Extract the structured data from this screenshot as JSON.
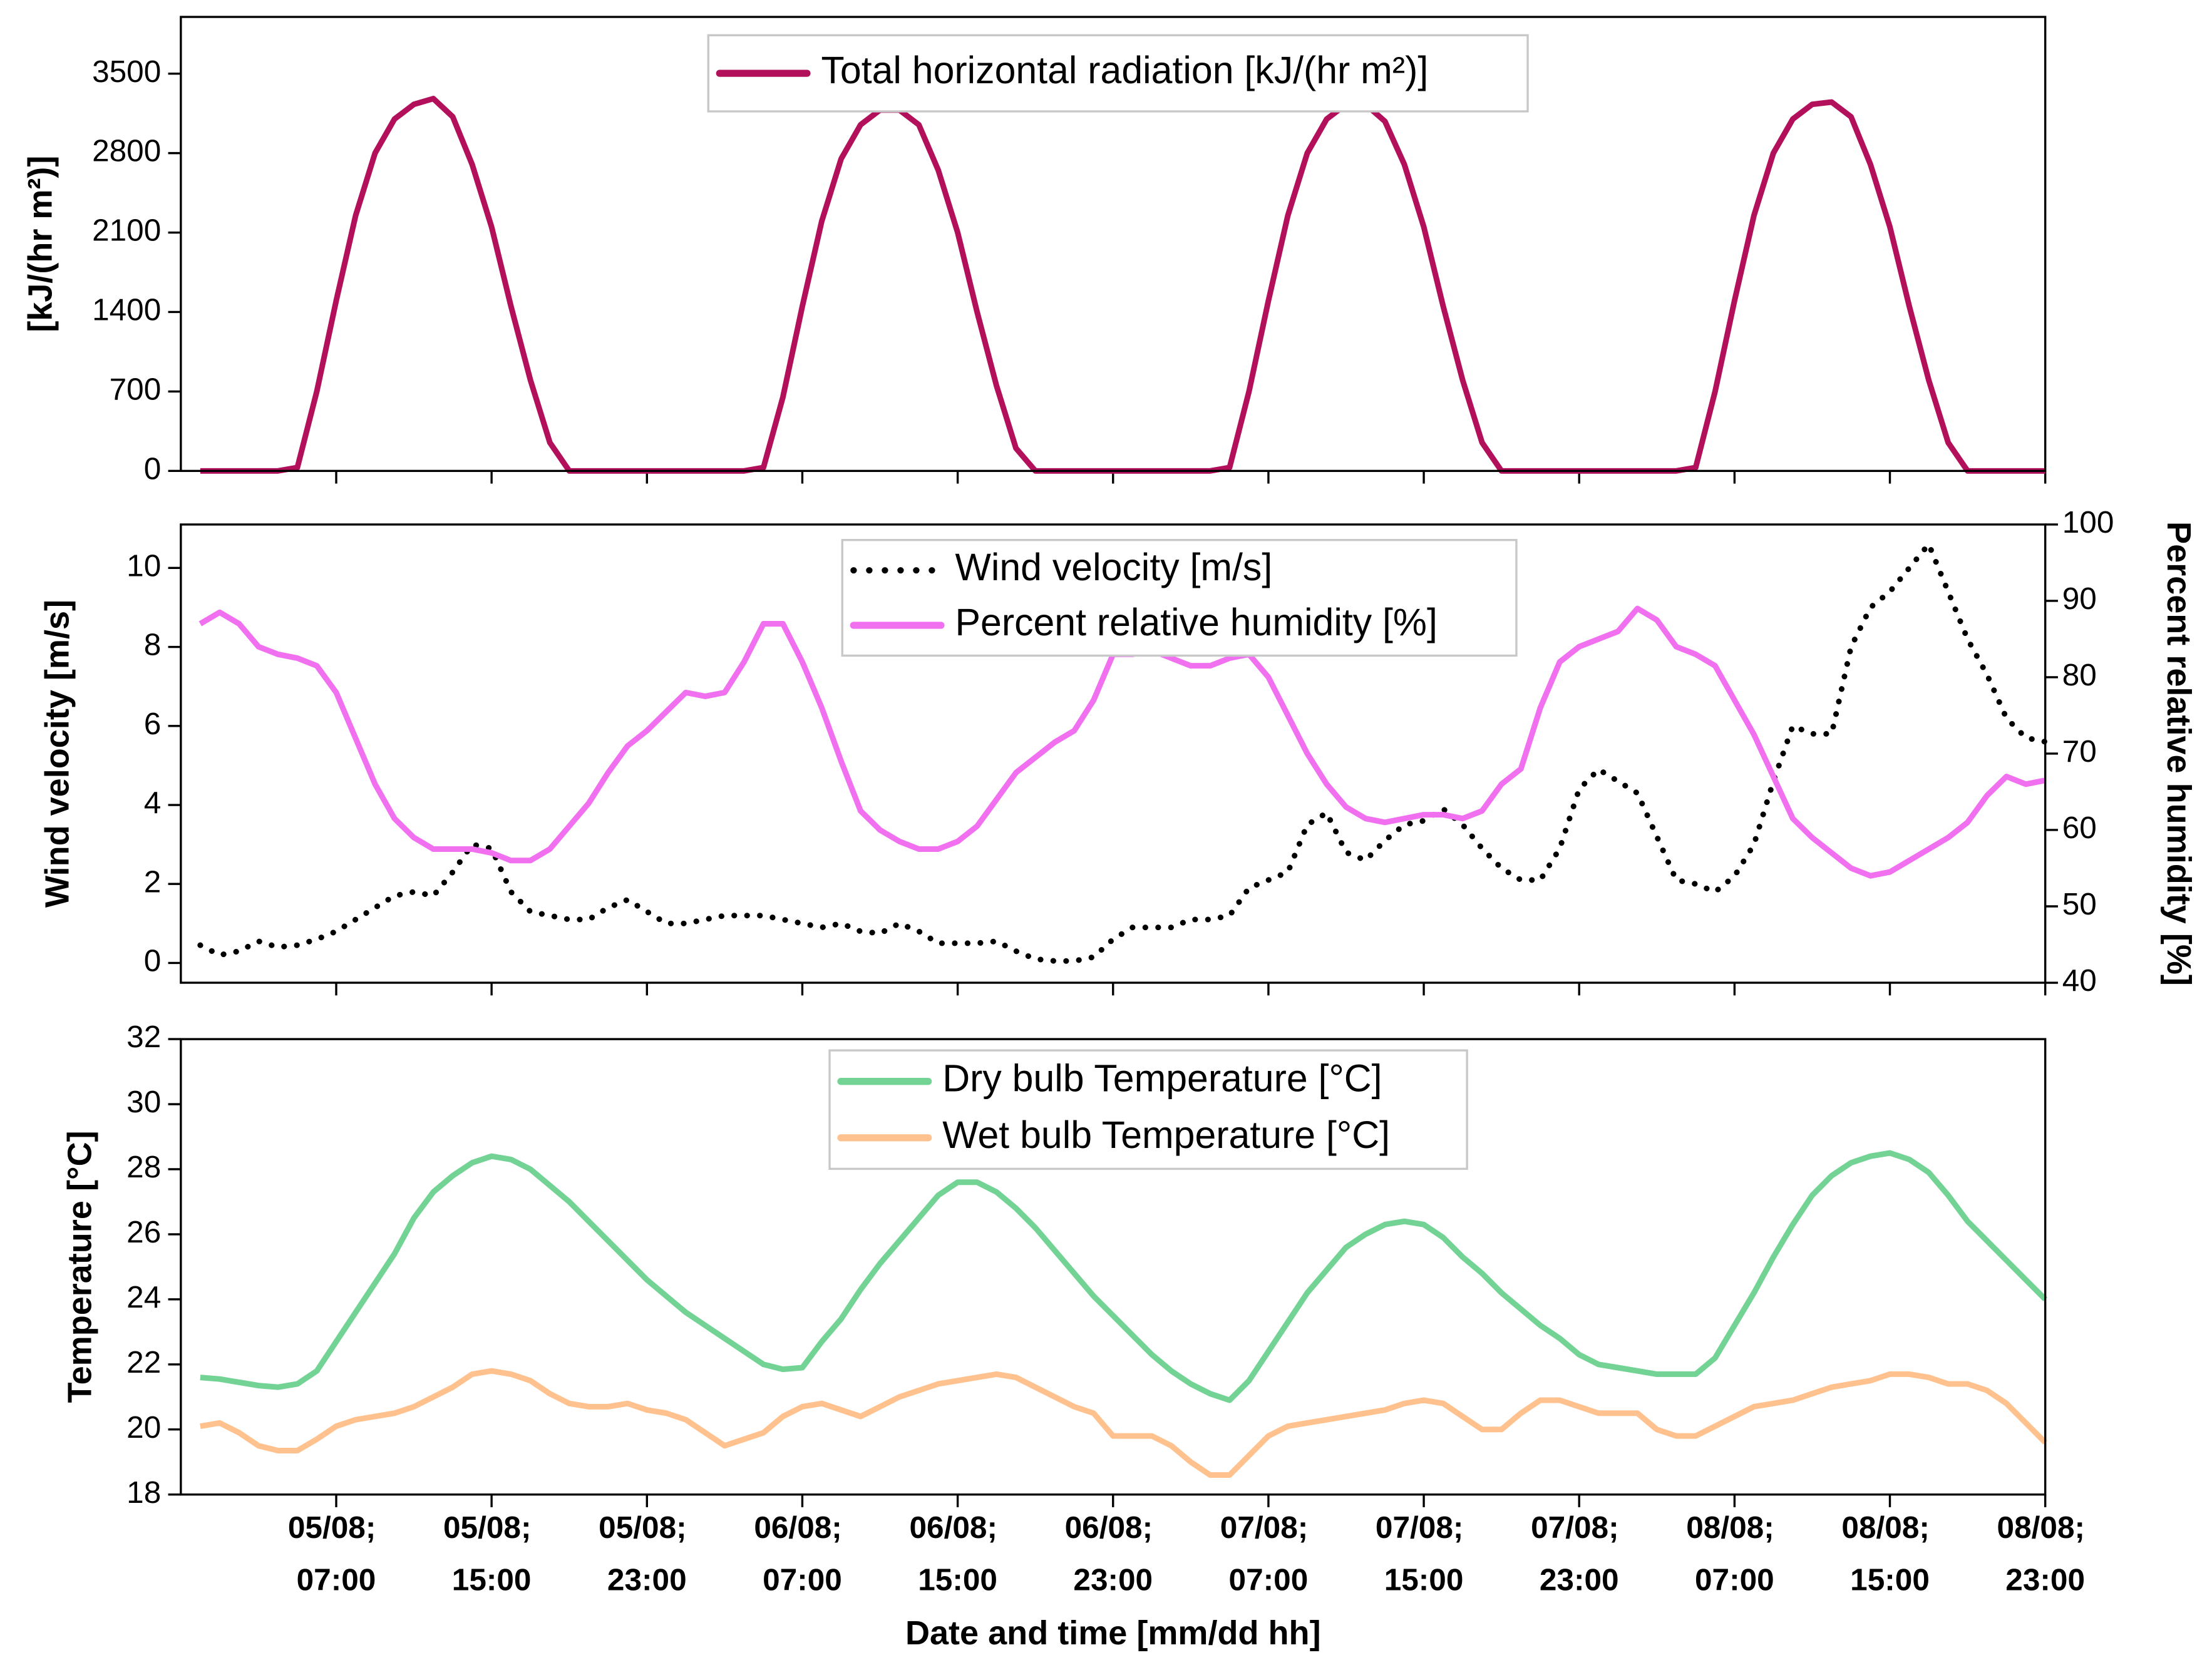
{
  "chart_data": [
    {
      "type": "line",
      "ylabel": "[kJ/(hr m²)]",
      "xlim": [
        -1,
        95
      ],
      "xticks": [
        7,
        15,
        23,
        31,
        39,
        47,
        55,
        63,
        71,
        79,
        87,
        95
      ],
      "ylim": [
        0,
        4000
      ],
      "yticks": [
        0,
        700,
        1400,
        2100,
        2800,
        3500
      ],
      "x": [
        0,
        1,
        2,
        3,
        4,
        5,
        6,
        7,
        8,
        9,
        10,
        11,
        12,
        13,
        14,
        15,
        16,
        17,
        18,
        19,
        20,
        21,
        22,
        23,
        24,
        25,
        26,
        27,
        28,
        29,
        30,
        31,
        32,
        33,
        34,
        35,
        36,
        37,
        38,
        39,
        40,
        41,
        42,
        43,
        44,
        45,
        46,
        47,
        48,
        49,
        50,
        51,
        52,
        53,
        54,
        55,
        56,
        57,
        58,
        59,
        60,
        61,
        62,
        63,
        64,
        65,
        66,
        67,
        68,
        69,
        70,
        71,
        72,
        73,
        74,
        75,
        76,
        77,
        78,
        79,
        80,
        81,
        82,
        83,
        84,
        85,
        86,
        87,
        88,
        89,
        90,
        91,
        92,
        93,
        94,
        95
      ],
      "series": [
        {
          "name": "Total horizontal radiation [kJ/(hr m²)]",
          "color": "#b3105c",
          "linestyle": "solid",
          "values": [
            0,
            0,
            0,
            0,
            0,
            30,
            700,
            1500,
            2250,
            2800,
            3100,
            3230,
            3280,
            3120,
            2700,
            2150,
            1450,
            800,
            250,
            0,
            0,
            0,
            0,
            0,
            0,
            0,
            0,
            0,
            0,
            30,
            650,
            1450,
            2200,
            2750,
            3050,
            3180,
            3180,
            3050,
            2650,
            2100,
            1400,
            750,
            200,
            0,
            0,
            0,
            0,
            0,
            0,
            0,
            0,
            0,
            0,
            30,
            700,
            1500,
            2250,
            2800,
            3100,
            3230,
            3230,
            3080,
            2700,
            2150,
            1450,
            800,
            250,
            0,
            0,
            0,
            0,
            0,
            0,
            0,
            0,
            0,
            0,
            30,
            700,
            1500,
            2250,
            2800,
            3100,
            3230,
            3250,
            3120,
            2700,
            2150,
            1450,
            800,
            250,
            0,
            0,
            0,
            0,
            0
          ]
        }
      ]
    },
    {
      "type": "line",
      "ylabel": "Wind velocity [m/s]",
      "y2label": "Percent relative humidity [%]",
      "xlim": [
        -1,
        95
      ],
      "xticks": [
        7,
        15,
        23,
        31,
        39,
        47,
        55,
        63,
        71,
        79,
        87,
        95
      ],
      "ylim": [
        -0.5,
        11.1
      ],
      "yticks": [
        0,
        2,
        4,
        6,
        8,
        10
      ],
      "y2lim": [
        40,
        100
      ],
      "y2ticks": [
        40,
        50,
        60,
        70,
        80,
        90,
        100
      ],
      "x": [
        0,
        1,
        2,
        3,
        4,
        5,
        6,
        7,
        8,
        9,
        10,
        11,
        12,
        13,
        14,
        15,
        16,
        17,
        18,
        19,
        20,
        21,
        22,
        23,
        24,
        25,
        26,
        27,
        28,
        29,
        30,
        31,
        32,
        33,
        34,
        35,
        36,
        37,
        38,
        39,
        40,
        41,
        42,
        43,
        44,
        45,
        46,
        47,
        48,
        49,
        50,
        51,
        52,
        53,
        54,
        55,
        56,
        57,
        58,
        59,
        60,
        61,
        62,
        63,
        64,
        65,
        66,
        67,
        68,
        69,
        70,
        71,
        72,
        73,
        74,
        75,
        76,
        77,
        78,
        79,
        80,
        81,
        82,
        83,
        84,
        85,
        86,
        87,
        88,
        89,
        90,
        91,
        92,
        93,
        94,
        95
      ],
      "series": [
        {
          "name": "Wind velocity [m/s]",
          "color": "#000000",
          "linestyle": "dotted",
          "values": [
            0.45,
            0.2,
            0.3,
            0.55,
            0.4,
            0.45,
            0.6,
            0.8,
            1.1,
            1.4,
            1.7,
            1.8,
            1.7,
            2.3,
            3.0,
            2.9,
            1.8,
            1.3,
            1.2,
            1.1,
            1.1,
            1.4,
            1.6,
            1.3,
            1.0,
            1.0,
            1.1,
            1.2,
            1.2,
            1.2,
            1.1,
            1.0,
            0.9,
            1.0,
            0.8,
            0.75,
            1.0,
            0.8,
            0.5,
            0.5,
            0.5,
            0.55,
            0.3,
            0.1,
            0.05,
            0.05,
            0.15,
            0.6,
            0.9,
            0.9,
            0.9,
            1.1,
            1.1,
            1.2,
            1.9,
            2.1,
            2.3,
            3.5,
            3.8,
            2.8,
            2.6,
            3.1,
            3.5,
            3.6,
            3.9,
            3.5,
            2.9,
            2.4,
            2.1,
            2.1,
            2.9,
            4.4,
            4.9,
            4.6,
            4.3,
            3.2,
            2.1,
            2.0,
            1.8,
            2.2,
            3.0,
            4.6,
            6.0,
            5.8,
            5.8,
            8.0,
            9.0,
            9.4,
            10.0,
            10.6,
            9.4,
            8.2,
            7.3,
            6.2,
            5.7,
            5.6
          ]
        },
        {
          "name": "Percent relative humidity [%]",
          "color": "#f070f0",
          "linestyle": "solid",
          "axis": "y2",
          "values": [
            87,
            88.5,
            87,
            84,
            83,
            82.5,
            81.5,
            78,
            72,
            66,
            61.5,
            59,
            57.5,
            57.5,
            57.5,
            57,
            56,
            56,
            57.5,
            60.5,
            63.5,
            67.5,
            71,
            73,
            75.5,
            78,
            77.5,
            78,
            82,
            87,
            87,
            82,
            76,
            69,
            62.5,
            60,
            58.5,
            57.5,
            57.5,
            58.5,
            60.5,
            64,
            67.5,
            69.5,
            71.5,
            73,
            77,
            83,
            83,
            83.5,
            82.5,
            81.5,
            81.5,
            82.5,
            83,
            80,
            75,
            70,
            66,
            63,
            61.5,
            61,
            61.5,
            62,
            62,
            61.5,
            62.5,
            66,
            68,
            76,
            82,
            84,
            85,
            86,
            89,
            87.5,
            84,
            83,
            81.5,
            77,
            72.5,
            67,
            61.5,
            59,
            57,
            55,
            54,
            54.5,
            56,
            57.5,
            59,
            61,
            64.5,
            67,
            66,
            66.5
          ]
        }
      ]
    },
    {
      "type": "line",
      "ylabel": "Temperature [°C]",
      "xlabel": "Date and time [mm/dd hh]",
      "xlim": [
        -1,
        95
      ],
      "xticks": [
        {
          "value": 7,
          "label": "05/08; 07:00"
        },
        {
          "value": 15,
          "label": "05/08; 15:00"
        },
        {
          "value": 23,
          "label": "05/08; 23:00"
        },
        {
          "value": 31,
          "label": "06/08; 07:00"
        },
        {
          "value": 39,
          "label": "06/08; 15:00"
        },
        {
          "value": 47,
          "label": "06/08; 23:00"
        },
        {
          "value": 55,
          "label": "07/08; 07:00"
        },
        {
          "value": 63,
          "label": "07/08; 15:00"
        },
        {
          "value": 71,
          "label": "07/08; 23:00"
        },
        {
          "value": 79,
          "label": "08/08; 07:00"
        },
        {
          "value": 87,
          "label": "08/08; 15:00"
        },
        {
          "value": 95,
          "label": "08/08; 23:00"
        }
      ],
      "ylim": [
        18,
        32
      ],
      "yticks": [
        18,
        20,
        22,
        24,
        26,
        28,
        30,
        32
      ],
      "x": [
        0,
        1,
        2,
        3,
        4,
        5,
        6,
        7,
        8,
        9,
        10,
        11,
        12,
        13,
        14,
        15,
        16,
        17,
        18,
        19,
        20,
        21,
        22,
        23,
        24,
        25,
        26,
        27,
        28,
        29,
        30,
        31,
        32,
        33,
        34,
        35,
        36,
        37,
        38,
        39,
        40,
        41,
        42,
        43,
        44,
        45,
        46,
        47,
        48,
        49,
        50,
        51,
        52,
        53,
        54,
        55,
        56,
        57,
        58,
        59,
        60,
        61,
        62,
        63,
        64,
        65,
        66,
        67,
        68,
        69,
        70,
        71,
        72,
        73,
        74,
        75,
        76,
        77,
        78,
        79,
        80,
        81,
        82,
        83,
        84,
        85,
        86,
        87,
        88,
        89,
        90,
        91,
        92,
        93,
        94,
        95
      ],
      "series": [
        {
          "name": "Dry bulb Temperature [°C]",
          "color": "#72d394",
          "linestyle": "solid",
          "values": [
            21.6,
            21.55,
            21.45,
            21.35,
            21.3,
            21.4,
            21.8,
            22.7,
            23.6,
            24.5,
            25.4,
            26.5,
            27.3,
            27.8,
            28.2,
            28.4,
            28.3,
            28.0,
            27.5,
            27.0,
            26.4,
            25.8,
            25.2,
            24.6,
            24.1,
            23.6,
            23.2,
            22.8,
            22.4,
            22.0,
            21.85,
            21.9,
            22.7,
            23.4,
            24.3,
            25.1,
            25.8,
            26.5,
            27.2,
            27.6,
            27.6,
            27.3,
            26.8,
            26.2,
            25.5,
            24.8,
            24.1,
            23.5,
            22.9,
            22.3,
            21.8,
            21.4,
            21.1,
            20.9,
            21.5,
            22.4,
            23.3,
            24.2,
            24.9,
            25.6,
            26.0,
            26.3,
            26.4,
            26.3,
            25.9,
            25.3,
            24.8,
            24.2,
            23.7,
            23.2,
            22.8,
            22.3,
            22.0,
            21.9,
            21.8,
            21.7,
            21.7,
            21.7,
            22.2,
            23.2,
            24.2,
            25.3,
            26.3,
            27.2,
            27.8,
            28.2,
            28.4,
            28.5,
            28.3,
            27.9,
            27.2,
            26.4,
            25.8,
            25.2,
            24.6,
            24.0
          ]
        },
        {
          "name": "Wet bulb Temperature [°C]",
          "color": "#ffc28e",
          "linestyle": "solid",
          "values": [
            20.1,
            20.2,
            19.9,
            19.5,
            19.35,
            19.35,
            19.7,
            20.1,
            20.3,
            20.4,
            20.5,
            20.7,
            21.0,
            21.3,
            21.7,
            21.8,
            21.7,
            21.5,
            21.1,
            20.8,
            20.7,
            20.7,
            20.8,
            20.6,
            20.5,
            20.3,
            19.9,
            19.5,
            19.7,
            19.9,
            20.4,
            20.7,
            20.8,
            20.6,
            20.4,
            20.7,
            21.0,
            21.2,
            21.4,
            21.5,
            21.6,
            21.7,
            21.6,
            21.3,
            21.0,
            20.7,
            20.5,
            19.8,
            19.8,
            19.8,
            19.5,
            19.0,
            18.6,
            18.6,
            19.2,
            19.8,
            20.1,
            20.2,
            20.3,
            20.4,
            20.5,
            20.6,
            20.8,
            20.9,
            20.8,
            20.4,
            20.0,
            20.0,
            20.5,
            20.9,
            20.9,
            20.7,
            20.5,
            20.5,
            20.5,
            20.0,
            19.8,
            19.8,
            20.1,
            20.4,
            20.7,
            20.8,
            20.9,
            21.1,
            21.3,
            21.4,
            21.5,
            21.7,
            21.7,
            21.6,
            21.4,
            21.4,
            21.2,
            20.8,
            20.2,
            19.6
          ]
        }
      ]
    }
  ]
}
